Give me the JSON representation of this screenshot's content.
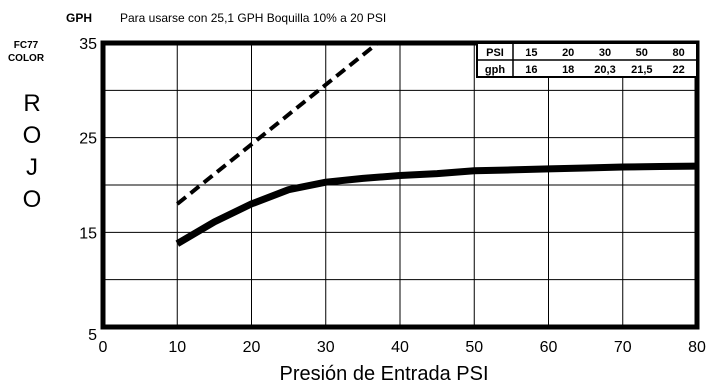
{
  "header": {
    "unit": "GPH",
    "subtitle": "Para usarse con 25,1 GPH Boquilla 10% a 20 PSI"
  },
  "side_label": {
    "code": "FC77",
    "word": "COLOR",
    "color_letters": [
      "R",
      "O",
      "J",
      "O"
    ]
  },
  "chart_data": {
    "type": "line",
    "xlabel": "Presión de Entrada PSI",
    "ylabel": "GPH",
    "xlim": [
      0,
      80
    ],
    "ylim": [
      5,
      35
    ],
    "x_ticks": [
      "0",
      "10",
      "20",
      "30",
      "40",
      "50",
      "60",
      "70",
      "80"
    ],
    "y_ticks": [
      "5",
      "15",
      "25",
      "35"
    ],
    "grid": true,
    "series": [
      {
        "style": "solid",
        "x": [
          10,
          15,
          20,
          25,
          30,
          35,
          40,
          45,
          50,
          55,
          60,
          65,
          70,
          75,
          80
        ],
        "y": [
          13.8,
          16.1,
          18.0,
          19.5,
          20.3,
          20.7,
          21.0,
          21.2,
          21.5,
          21.6,
          21.7,
          21.8,
          21.9,
          21.95,
          22.0
        ]
      },
      {
        "style": "dashed",
        "x": [
          10,
          37
        ],
        "y": [
          18.0,
          35.0
        ]
      }
    ],
    "table": {
      "header": "PSI",
      "row_label": "gph",
      "psi": [
        "15",
        "20",
        "30",
        "50",
        "80"
      ],
      "gph": [
        "16",
        "18",
        "20,3",
        "21,5",
        "22"
      ]
    }
  }
}
